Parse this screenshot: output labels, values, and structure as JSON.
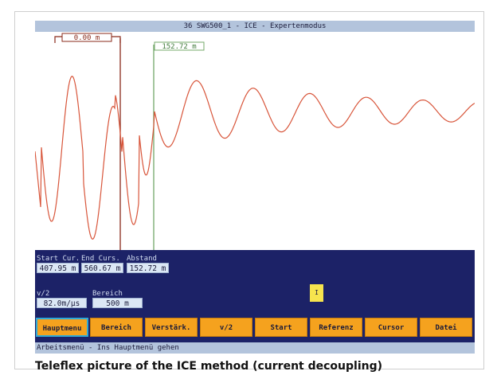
{
  "window": {
    "title": "36 SWG500_1 - ICE - Expertenmodus"
  },
  "plot": {
    "cursor_start_label": "0.00 m",
    "cursor_end_label": "152.72 m",
    "colors": {
      "trace": "#d8553a",
      "cursor_start": "#8a2a1a",
      "cursor_end": "#74a86a"
    }
  },
  "readouts": {
    "start_label": "Start Cur.",
    "end_label": "End Curs.",
    "distance_label": "Abstand",
    "start_value": "407.95 m",
    "end_value": "560.67 m",
    "distance_value": "152.72 m",
    "v2_label": "v/2",
    "range_label": "Bereich",
    "v2_value": "82.0m/µs",
    "range_value": "500 m",
    "marker_text": "I"
  },
  "buttons": [
    {
      "label": "Hauptmenu"
    },
    {
      "label": "Bereich"
    },
    {
      "label": "Verstärk."
    },
    {
      "label": "v/2"
    },
    {
      "label": "Start"
    },
    {
      "label": "Referenz"
    },
    {
      "label": "Cursor"
    },
    {
      "label": "Datei"
    }
  ],
  "status": {
    "text": "Arbeitsmenü - Ins Hauptmenü gehen"
  },
  "caption": {
    "text": "Teleflex picture of the ICE method (current decoupling)"
  }
}
